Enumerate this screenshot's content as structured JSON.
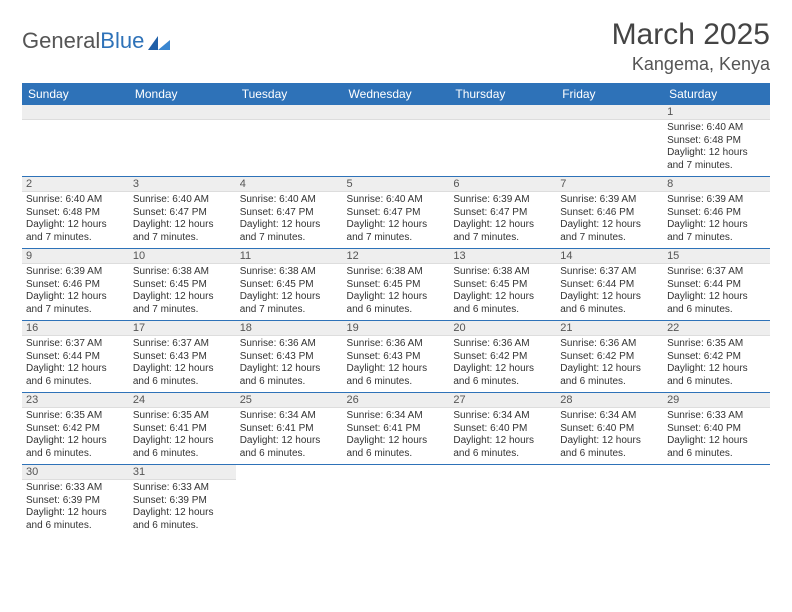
{
  "brand": {
    "part1": "General",
    "part2": "Blue"
  },
  "title": "March 2025",
  "location": "Kangema, Kenya",
  "colors": {
    "header_bg": "#2e72b8",
    "header_text": "#ffffff",
    "daynum_bg": "#eeeeee",
    "row_divider": "#2e72b8",
    "text": "#333333",
    "page_bg": "#ffffff"
  },
  "weekdays": [
    "Sunday",
    "Monday",
    "Tuesday",
    "Wednesday",
    "Thursday",
    "Friday",
    "Saturday"
  ],
  "weeks": [
    [
      null,
      null,
      null,
      null,
      null,
      null,
      {
        "n": "1",
        "sr": "Sunrise: 6:40 AM",
        "ss": "Sunset: 6:48 PM",
        "d1": "Daylight: 12 hours",
        "d2": "and 7 minutes."
      }
    ],
    [
      {
        "n": "2",
        "sr": "Sunrise: 6:40 AM",
        "ss": "Sunset: 6:48 PM",
        "d1": "Daylight: 12 hours",
        "d2": "and 7 minutes."
      },
      {
        "n": "3",
        "sr": "Sunrise: 6:40 AM",
        "ss": "Sunset: 6:47 PM",
        "d1": "Daylight: 12 hours",
        "d2": "and 7 minutes."
      },
      {
        "n": "4",
        "sr": "Sunrise: 6:40 AM",
        "ss": "Sunset: 6:47 PM",
        "d1": "Daylight: 12 hours",
        "d2": "and 7 minutes."
      },
      {
        "n": "5",
        "sr": "Sunrise: 6:40 AM",
        "ss": "Sunset: 6:47 PM",
        "d1": "Daylight: 12 hours",
        "d2": "and 7 minutes."
      },
      {
        "n": "6",
        "sr": "Sunrise: 6:39 AM",
        "ss": "Sunset: 6:47 PM",
        "d1": "Daylight: 12 hours",
        "d2": "and 7 minutes."
      },
      {
        "n": "7",
        "sr": "Sunrise: 6:39 AM",
        "ss": "Sunset: 6:46 PM",
        "d1": "Daylight: 12 hours",
        "d2": "and 7 minutes."
      },
      {
        "n": "8",
        "sr": "Sunrise: 6:39 AM",
        "ss": "Sunset: 6:46 PM",
        "d1": "Daylight: 12 hours",
        "d2": "and 7 minutes."
      }
    ],
    [
      {
        "n": "9",
        "sr": "Sunrise: 6:39 AM",
        "ss": "Sunset: 6:46 PM",
        "d1": "Daylight: 12 hours",
        "d2": "and 7 minutes."
      },
      {
        "n": "10",
        "sr": "Sunrise: 6:38 AM",
        "ss": "Sunset: 6:45 PM",
        "d1": "Daylight: 12 hours",
        "d2": "and 7 minutes."
      },
      {
        "n": "11",
        "sr": "Sunrise: 6:38 AM",
        "ss": "Sunset: 6:45 PM",
        "d1": "Daylight: 12 hours",
        "d2": "and 7 minutes."
      },
      {
        "n": "12",
        "sr": "Sunrise: 6:38 AM",
        "ss": "Sunset: 6:45 PM",
        "d1": "Daylight: 12 hours",
        "d2": "and 6 minutes."
      },
      {
        "n": "13",
        "sr": "Sunrise: 6:38 AM",
        "ss": "Sunset: 6:45 PM",
        "d1": "Daylight: 12 hours",
        "d2": "and 6 minutes."
      },
      {
        "n": "14",
        "sr": "Sunrise: 6:37 AM",
        "ss": "Sunset: 6:44 PM",
        "d1": "Daylight: 12 hours",
        "d2": "and 6 minutes."
      },
      {
        "n": "15",
        "sr": "Sunrise: 6:37 AM",
        "ss": "Sunset: 6:44 PM",
        "d1": "Daylight: 12 hours",
        "d2": "and 6 minutes."
      }
    ],
    [
      {
        "n": "16",
        "sr": "Sunrise: 6:37 AM",
        "ss": "Sunset: 6:44 PM",
        "d1": "Daylight: 12 hours",
        "d2": "and 6 minutes."
      },
      {
        "n": "17",
        "sr": "Sunrise: 6:37 AM",
        "ss": "Sunset: 6:43 PM",
        "d1": "Daylight: 12 hours",
        "d2": "and 6 minutes."
      },
      {
        "n": "18",
        "sr": "Sunrise: 6:36 AM",
        "ss": "Sunset: 6:43 PM",
        "d1": "Daylight: 12 hours",
        "d2": "and 6 minutes."
      },
      {
        "n": "19",
        "sr": "Sunrise: 6:36 AM",
        "ss": "Sunset: 6:43 PM",
        "d1": "Daylight: 12 hours",
        "d2": "and 6 minutes."
      },
      {
        "n": "20",
        "sr": "Sunrise: 6:36 AM",
        "ss": "Sunset: 6:42 PM",
        "d1": "Daylight: 12 hours",
        "d2": "and 6 minutes."
      },
      {
        "n": "21",
        "sr": "Sunrise: 6:36 AM",
        "ss": "Sunset: 6:42 PM",
        "d1": "Daylight: 12 hours",
        "d2": "and 6 minutes."
      },
      {
        "n": "22",
        "sr": "Sunrise: 6:35 AM",
        "ss": "Sunset: 6:42 PM",
        "d1": "Daylight: 12 hours",
        "d2": "and 6 minutes."
      }
    ],
    [
      {
        "n": "23",
        "sr": "Sunrise: 6:35 AM",
        "ss": "Sunset: 6:42 PM",
        "d1": "Daylight: 12 hours",
        "d2": "and 6 minutes."
      },
      {
        "n": "24",
        "sr": "Sunrise: 6:35 AM",
        "ss": "Sunset: 6:41 PM",
        "d1": "Daylight: 12 hours",
        "d2": "and 6 minutes."
      },
      {
        "n": "25",
        "sr": "Sunrise: 6:34 AM",
        "ss": "Sunset: 6:41 PM",
        "d1": "Daylight: 12 hours",
        "d2": "and 6 minutes."
      },
      {
        "n": "26",
        "sr": "Sunrise: 6:34 AM",
        "ss": "Sunset: 6:41 PM",
        "d1": "Daylight: 12 hours",
        "d2": "and 6 minutes."
      },
      {
        "n": "27",
        "sr": "Sunrise: 6:34 AM",
        "ss": "Sunset: 6:40 PM",
        "d1": "Daylight: 12 hours",
        "d2": "and 6 minutes."
      },
      {
        "n": "28",
        "sr": "Sunrise: 6:34 AM",
        "ss": "Sunset: 6:40 PM",
        "d1": "Daylight: 12 hours",
        "d2": "and 6 minutes."
      },
      {
        "n": "29",
        "sr": "Sunrise: 6:33 AM",
        "ss": "Sunset: 6:40 PM",
        "d1": "Daylight: 12 hours",
        "d2": "and 6 minutes."
      }
    ],
    [
      {
        "n": "30",
        "sr": "Sunrise: 6:33 AM",
        "ss": "Sunset: 6:39 PM",
        "d1": "Daylight: 12 hours",
        "d2": "and 6 minutes."
      },
      {
        "n": "31",
        "sr": "Sunrise: 6:33 AM",
        "ss": "Sunset: 6:39 PM",
        "d1": "Daylight: 12 hours",
        "d2": "and 6 minutes."
      },
      null,
      null,
      null,
      null,
      null
    ]
  ]
}
